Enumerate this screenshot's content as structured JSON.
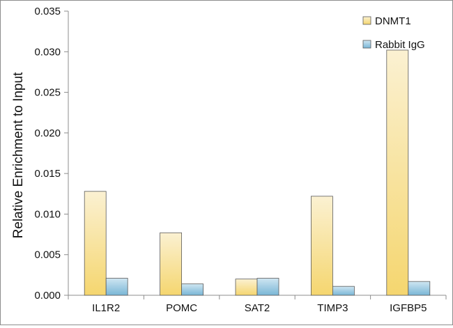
{
  "chart_data": {
    "type": "bar",
    "categories": [
      "IL1R2",
      "POMC",
      "SAT2",
      "TIMP3",
      "IGFBP5"
    ],
    "series": [
      {
        "name": "DNMT1",
        "values": [
          0.0128,
          0.0077,
          0.002,
          0.0122,
          0.0302
        ],
        "color": "#f5d66f"
      },
      {
        "name": "Rabbit IgG",
        "values": [
          0.0021,
          0.0014,
          0.0021,
          0.0011,
          0.0017
        ],
        "color": "#79b6d6"
      }
    ],
    "ylabel": "Relative Enrichment to Input",
    "xlabel": "",
    "ylim": [
      0,
      0.035
    ],
    "yticks": [
      "0.000",
      "0.005",
      "0.010",
      "0.015",
      "0.020",
      "0.025",
      "0.030",
      "0.035"
    ],
    "grid": false,
    "legend_position": "top-right"
  }
}
